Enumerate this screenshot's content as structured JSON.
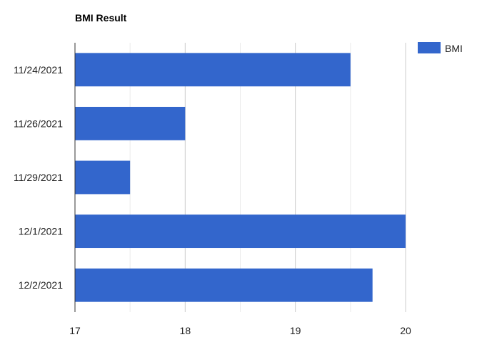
{
  "chart_data": {
    "type": "bar",
    "orientation": "horizontal",
    "title": "BMI Result",
    "categories": [
      "11/24/2021",
      "11/26/2021",
      "11/29/2021",
      "12/1/2021",
      "12/2/2021"
    ],
    "series": [
      {
        "name": "BMI",
        "values": [
          19.5,
          18.0,
          17.5,
          20.0,
          19.7
        ]
      }
    ],
    "xlim": [
      17,
      20
    ],
    "x_ticks": [
      "17",
      "18",
      "19",
      "20"
    ],
    "xlabel": "",
    "ylabel": "",
    "grid": true,
    "legend_position": "top-right",
    "colors": {
      "bar": "#3366cc",
      "gridline": "#cccccc",
      "minor_gridline": "#ebebeb",
      "axis": "#333333"
    }
  }
}
